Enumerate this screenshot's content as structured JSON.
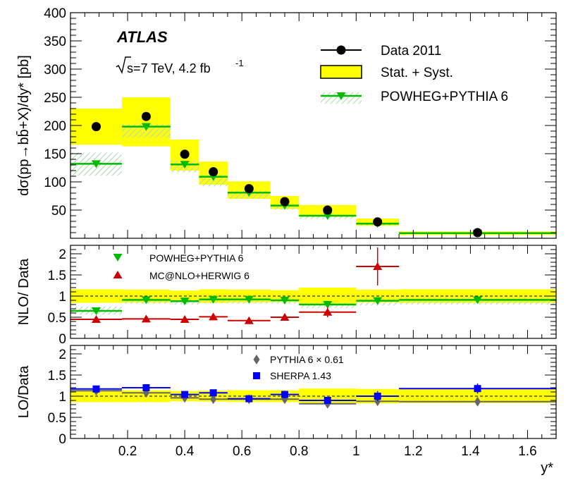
{
  "experiment": "ATLAS",
  "energy_label": "s=7 TeV, 4.2 fb",
  "energy_exponent": "-1",
  "colors": {
    "band": "#ffff00",
    "band_edge": "#000000",
    "powheg": "#00bb00",
    "mcnlo": "#cc0000",
    "pythia": "#666666",
    "sherpa": "#0000ff",
    "hatch": "#b7dcb7"
  },
  "chart_data": [
    {
      "type": "scatter",
      "panel": "top",
      "ylabel": "dσ(pp→bb̄+X)/dy* [pb]",
      "ylim": [
        0,
        400
      ],
      "xlim": [
        0,
        1.7
      ],
      "yticks": [
        50,
        100,
        150,
        200,
        250,
        300,
        350,
        400
      ],
      "bin_edges": [
        0,
        0.18,
        0.35,
        0.45,
        0.55,
        0.7,
        0.8,
        1.0,
        1.15,
        1.7
      ],
      "legend": {
        "placement": "top-right",
        "entries": [
          "Data 2011",
          "Stat. + Syst.",
          "POWHEG+PYTHIA 6"
        ]
      },
      "series": [
        {
          "name": "Data 2011",
          "x": [
            0.09,
            0.265,
            0.4,
            0.5,
            0.625,
            0.75,
            0.9,
            1.075,
            1.425
          ],
          "y": [
            198,
            216,
            149,
            118,
            88,
            65,
            50,
            29,
            10
          ],
          "band_low": [
            166,
            163,
            120,
            95,
            70,
            52,
            38,
            22,
            6
          ],
          "band_high": [
            230,
            250,
            175,
            136,
            101,
            75,
            59,
            35,
            12
          ]
        },
        {
          "name": "POWHEG+PYTHIA 6",
          "x": [
            0.09,
            0.265,
            0.4,
            0.5,
            0.625,
            0.75,
            0.9,
            1.075,
            1.425
          ],
          "y": [
            132,
            198,
            131,
            109,
            81,
            58,
            40,
            26,
            9
          ],
          "band_low": [
            111,
            178,
            117,
            92,
            70,
            51,
            34,
            22,
            7
          ],
          "band_high": [
            152,
            203,
            138,
            112,
            84,
            60,
            42,
            28,
            11
          ]
        }
      ]
    },
    {
      "type": "scatter",
      "panel": "middle",
      "ylabel": "NLO/ Data",
      "ylim": [
        0,
        2.2
      ],
      "yticks": [
        0,
        0.5,
        1,
        1.5,
        2
      ],
      "xlim": [
        0,
        1.7
      ],
      "legend": {
        "placement": "top-left",
        "entries": [
          "POWHEG+PYTHIA 6",
          "MC@NLO+HERWIG 6"
        ]
      },
      "band": {
        "low": [
          0.84,
          0.85,
          0.87,
          0.84,
          0.85,
          0.86,
          0.8,
          0.85,
          0.84
        ],
        "high": [
          1.16,
          1.15,
          1.13,
          1.16,
          1.15,
          1.14,
          1.2,
          1.15,
          1.16
        ]
      },
      "series": [
        {
          "name": "POWHEG+PYTHIA 6",
          "x": [
            0.09,
            0.265,
            0.4,
            0.5,
            0.625,
            0.75,
            0.9,
            1.075,
            1.425
          ],
          "y": [
            0.65,
            0.91,
            0.88,
            0.92,
            0.92,
            0.9,
            0.8,
            0.89,
            0.91
          ],
          "band_low": [
            0.56,
            0.82,
            0.8,
            0.83,
            0.82,
            0.82,
            0.72,
            0.78,
            0.8
          ],
          "band_high": [
            0.75,
            0.94,
            0.92,
            0.95,
            0.95,
            0.93,
            0.85,
            0.94,
            0.96
          ]
        },
        {
          "name": "MC@NLO+HERWIG 6",
          "x": [
            0.09,
            0.265,
            0.4,
            0.5,
            0.625,
            0.75,
            0.9,
            1.075
          ],
          "y": [
            0.45,
            0.46,
            0.45,
            0.51,
            0.42,
            0.5,
            0.62,
            1.7
          ],
          "err_low": [
            0.05,
            0.04,
            0.05,
            0.05,
            0.04,
            0.08,
            0.12,
            0.45
          ],
          "err_high": [
            0.05,
            0.04,
            0.05,
            0.05,
            0.04,
            0.08,
            0.12,
            0.45
          ]
        }
      ]
    },
    {
      "type": "scatter",
      "panel": "bottom",
      "ylabel": "LO/Data",
      "xlabel": "y*",
      "ylim": [
        0,
        2.2
      ],
      "yticks": [
        0,
        0.5,
        1,
        1.5,
        2
      ],
      "xlim": [
        0,
        1.7
      ],
      "xticks": [
        0.2,
        0.4,
        0.6,
        0.8,
        1,
        1.2,
        1.4,
        1.6
      ],
      "legend": {
        "placement": "top-center",
        "entries": [
          "PYTHIA 6 × 0.61",
          "SHERPA 1.43"
        ]
      },
      "band": {
        "low": [
          0.86,
          0.86,
          0.88,
          0.87,
          0.86,
          0.86,
          0.82,
          0.83,
          0.84
        ],
        "high": [
          1.14,
          1.14,
          1.12,
          1.13,
          1.14,
          1.14,
          1.18,
          1.17,
          1.16
        ]
      },
      "series": [
        {
          "name": "PYTHIA 6 × 0.61",
          "x": [
            0.09,
            0.265,
            0.4,
            0.5,
            0.625,
            0.75,
            0.9,
            1.075,
            1.425
          ],
          "y": [
            1.13,
            1.08,
            0.96,
            0.93,
            0.93,
            0.93,
            0.82,
            0.88,
            0.87
          ],
          "err": [
            0.02,
            0.02,
            0.03,
            0.03,
            0.03,
            0.03,
            0.03,
            0.03,
            0.03
          ]
        },
        {
          "name": "SHERPA 1.43",
          "x": [
            0.09,
            0.265,
            0.4,
            0.5,
            0.625,
            0.75,
            0.9,
            1.075,
            1.425
          ],
          "y": [
            1.17,
            1.2,
            1.04,
            1.08,
            0.94,
            1.04,
            0.9,
            1.0,
            1.18
          ],
          "err": [
            0.05,
            0.05,
            0.06,
            0.07,
            0.05,
            0.09,
            0.08,
            0.12,
            0.12
          ]
        }
      ]
    }
  ]
}
